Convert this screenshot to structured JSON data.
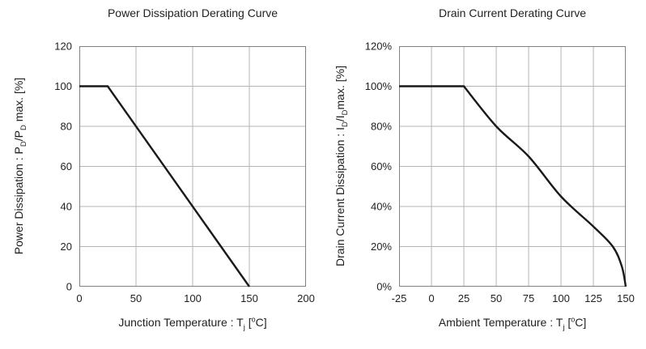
{
  "colors": {
    "background": "#ffffff",
    "grid": "#b4b4b4",
    "axis_border": "#828282",
    "curve": "#1a1a1a",
    "text": "#1f1f1f"
  },
  "chart_data": [
    {
      "type": "line",
      "title": "Power Dissipation Derating Curve",
      "xlabel": "Junction Temperature : Tj [°C]",
      "ylabel": "Power Dissipation : PD/PD max. [%]",
      "xlabel_rich": [
        {
          "t": "Junction Temperature : T"
        },
        {
          "t": "j",
          "sub": true
        },
        {
          "t": " ["
        },
        {
          "t": "o",
          "sup": true
        },
        {
          "t": "C]"
        }
      ],
      "ylabel_rich": [
        {
          "t": "Power Dissipation : P"
        },
        {
          "t": "D",
          "sub": true
        },
        {
          "t": "/P"
        },
        {
          "t": "D",
          "sub": true
        },
        {
          "t": " max. [%]"
        }
      ],
      "xlim": [
        0,
        200
      ],
      "ylim": [
        0,
        120
      ],
      "x_ticks": [
        0,
        50,
        100,
        150,
        200
      ],
      "x_tick_labels": [
        "0",
        "50",
        "100",
        "150",
        "200"
      ],
      "y_ticks": [
        0,
        20,
        40,
        60,
        80,
        100,
        120
      ],
      "y_tick_labels": [
        "0",
        "20",
        "40",
        "60",
        "80",
        "100",
        "120"
      ],
      "grid": true,
      "legend": "none",
      "series": [
        {
          "name": "power-dissipation-derating",
          "smooth": false,
          "points": [
            [
              0,
              100
            ],
            [
              25,
              100
            ],
            [
              150,
              0
            ]
          ]
        }
      ]
    },
    {
      "type": "line",
      "title": "Drain Current Derating Curve",
      "xlabel": "Ambient Temperature : Tj [°C]",
      "ylabel": "Drain Current Dissipation : ID/IDmax. [%]",
      "xlabel_rich": [
        {
          "t": "Ambient Temperature : T"
        },
        {
          "t": "j",
          "sub": true
        },
        {
          "t": " ["
        },
        {
          "t": "o",
          "sup": true
        },
        {
          "t": "C]"
        }
      ],
      "ylabel_rich": [
        {
          "t": "Drain Current Dissipation : I"
        },
        {
          "t": "D",
          "sub": true
        },
        {
          "t": "/I"
        },
        {
          "t": "D",
          "sub": true
        },
        {
          "t": "max. [%]"
        }
      ],
      "xlim": [
        -25,
        150
      ],
      "ylim": [
        0,
        120
      ],
      "x_ticks": [
        -25,
        0,
        25,
        50,
        75,
        100,
        125,
        150
      ],
      "x_tick_labels": [
        "-25",
        "0",
        "25",
        "50",
        "75",
        "100",
        "125",
        "150"
      ],
      "y_ticks": [
        0,
        20,
        40,
        60,
        80,
        100,
        120
      ],
      "y_tick_labels": [
        "0%",
        "20%",
        "40%",
        "60%",
        "80%",
        "100%",
        "120%"
      ],
      "grid": true,
      "legend": "none",
      "series": [
        {
          "name": "drain-current-derating",
          "smooth": true,
          "points": [
            [
              -25,
              100
            ],
            [
              25,
              100
            ],
            [
              50,
              80
            ],
            [
              75,
              65
            ],
            [
              100,
              45
            ],
            [
              125,
              30
            ],
            [
              140,
              20
            ],
            [
              147,
              10
            ],
            [
              150,
              0
            ]
          ]
        }
      ]
    }
  ]
}
